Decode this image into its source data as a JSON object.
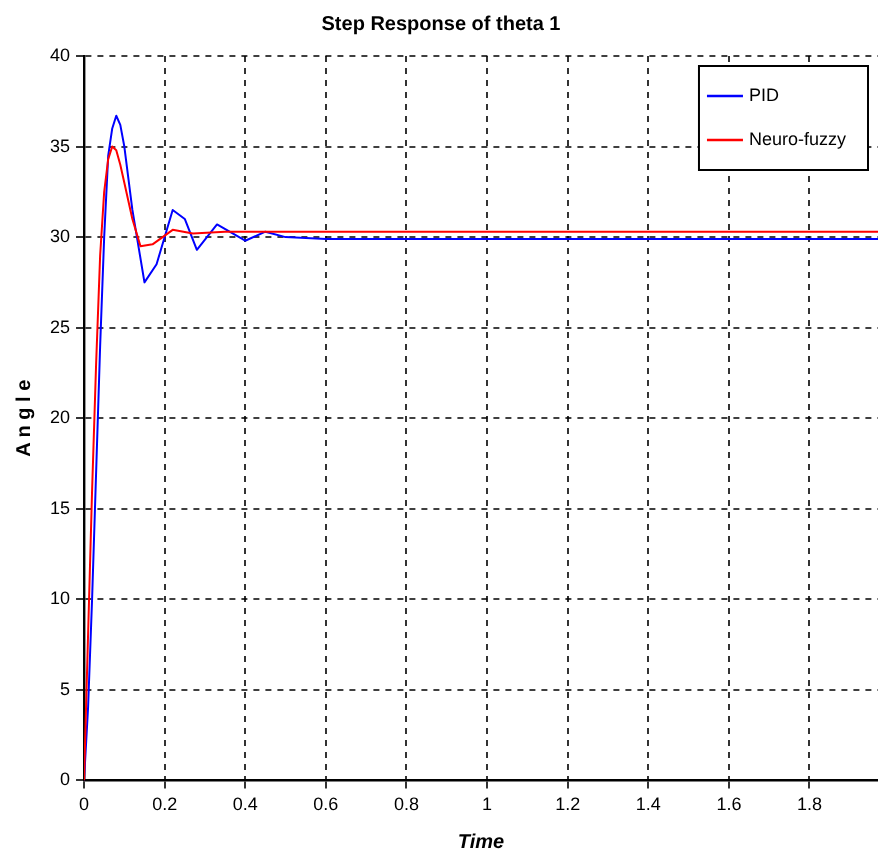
{
  "chart_data": {
    "type": "line",
    "title": "Step Response of theta 1",
    "xlabel": "Time",
    "ylabel": "A n g l e",
    "xlim": [
      0,
      1.97
    ],
    "xticks": [
      0,
      0.2,
      0.4,
      0.6,
      0.8,
      1,
      1.2,
      1.4,
      1.6,
      1.8
    ],
    "ylim": [
      0,
      40
    ],
    "yticks": [
      0,
      5,
      10,
      15,
      20,
      25,
      30,
      35,
      40
    ],
    "grid": true,
    "legend": "top right",
    "marker": "none",
    "line_style": "solid",
    "series": [
      {
        "name": "PID",
        "color": "#0000ff",
        "x": [
          0,
          0.01,
          0.02,
          0.03,
          0.04,
          0.05,
          0.06,
          0.07,
          0.08,
          0.09,
          0.1,
          0.12,
          0.15,
          0.18,
          0.22,
          0.25,
          0.28,
          0.33,
          0.4,
          0.45,
          0.5,
          0.6,
          0.8,
          1,
          1.2,
          1.5,
          1.8,
          1.97
        ],
        "values": [
          0,
          4,
          10,
          17,
          24,
          30,
          34.5,
          36,
          36.7,
          36.2,
          35,
          31.5,
          27.5,
          28.5,
          31.5,
          31,
          29.3,
          30.7,
          29.8,
          30.3,
          30,
          29.9,
          29.9,
          29.9,
          29.9,
          29.9,
          29.9,
          29.9
        ]
      },
      {
        "name": "Neuro-fuzzy",
        "color": "#ff0000",
        "x": [
          0,
          0.01,
          0.02,
          0.03,
          0.04,
          0.05,
          0.06,
          0.07,
          0.08,
          0.09,
          0.1,
          0.12,
          0.14,
          0.17,
          0.22,
          0.27,
          0.35,
          0.5,
          0.8,
          1,
          1.2,
          1.5,
          1.8,
          1.97
        ],
        "values": [
          0,
          8,
          16,
          23,
          29,
          32.5,
          34.3,
          35,
          34.8,
          34,
          33,
          31,
          29.5,
          29.6,
          30.4,
          30.2,
          30.3,
          30.3,
          30.3,
          30.3,
          30.3,
          30.3,
          30.3,
          30.3
        ]
      }
    ]
  }
}
